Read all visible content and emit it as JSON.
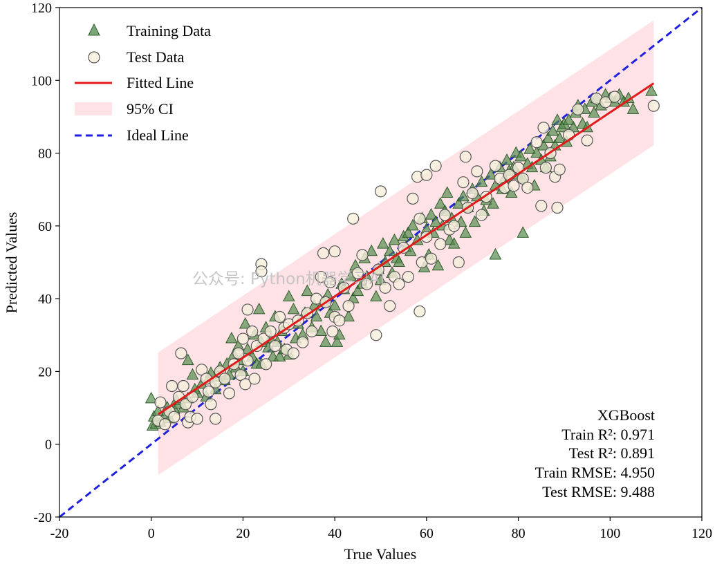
{
  "chart_data": {
    "type": "scatter",
    "xlabel": "True Values",
    "ylabel": "Predicted Values",
    "xlim": [
      -20,
      120
    ],
    "ylim": [
      -20,
      120
    ],
    "xticks": [
      "-20",
      "0",
      "20",
      "40",
      "60",
      "80",
      "100",
      "120"
    ],
    "yticks": [
      "-20",
      "0",
      "20",
      "40",
      "60",
      "80",
      "100",
      "120"
    ],
    "legend": [
      {
        "label": "Training Data",
        "kind": "triangle"
      },
      {
        "label": "Test Data",
        "kind": "circle"
      },
      {
        "label": "Fitted Line",
        "kind": "line"
      },
      {
        "label": "95% CI",
        "kind": "band"
      },
      {
        "label": "Ideal Line",
        "kind": "dashed"
      }
    ],
    "legend_position": "upper-left",
    "colors": {
      "training": "#4f8a4a",
      "training_edge": "#2f5a2b",
      "test": "#f6efdc",
      "test_edge": "#555555",
      "fitted": "#e31a1c",
      "ci": "#ffd5dc",
      "ideal": "#1f1fdf"
    },
    "fitted_line": {
      "x": [
        1.5,
        109.5
      ],
      "y": [
        8.2,
        99.2
      ]
    },
    "ci_band": {
      "x": [
        1.5,
        109.5
      ],
      "lower": [
        -8.5,
        82.2
      ],
      "upper": [
        25.2,
        116.5
      ]
    },
    "ideal_line": {
      "x": [
        -20,
        120
      ],
      "y": [
        -20,
        120
      ]
    },
    "metrics": {
      "model": "XGBoost",
      "train_r2": "Train R²: 0.971",
      "test_r2": "Test R²: 0.891",
      "train_rmse": "Train RMSE: 4.950",
      "test_rmse": "Test RMSE: 9.488"
    },
    "watermark": "公众号: Python机器学习AI",
    "series": [
      {
        "name": "Training Data",
        "points": [
          [
            0,
            12.5
          ],
          [
            0.3,
            5
          ],
          [
            0.6,
            7.5
          ],
          [
            1,
            5.5
          ],
          [
            1.5,
            9
          ],
          [
            2,
            6
          ],
          [
            3,
            8
          ],
          [
            3.5,
            10
          ],
          [
            4,
            7
          ],
          [
            5,
            9.5
          ],
          [
            5.5,
            12
          ],
          [
            6,
            11
          ],
          [
            7,
            10
          ],
          [
            8,
            12.5
          ],
          [
            8,
            23
          ],
          [
            9,
            19
          ],
          [
            9.5,
            15
          ],
          [
            10,
            14
          ],
          [
            11,
            16.5
          ],
          [
            12,
            13
          ],
          [
            12.5,
            18
          ],
          [
            13,
            19.5
          ],
          [
            14,
            15
          ],
          [
            14.5,
            18.5
          ],
          [
            15,
            21
          ],
          [
            16,
            17.5
          ],
          [
            16.5,
            22
          ],
          [
            17,
            19
          ],
          [
            17.5,
            29
          ],
          [
            18,
            24.5
          ],
          [
            18.5,
            21
          ],
          [
            19,
            27
          ],
          [
            19.5,
            23
          ],
          [
            20,
            20
          ],
          [
            20.5,
            33
          ],
          [
            21,
            26
          ],
          [
            22,
            24
          ],
          [
            22.5,
            30
          ],
          [
            23,
            22
          ],
          [
            23.5,
            37
          ],
          [
            24,
            28
          ],
          [
            24,
            22
          ],
          [
            25,
            32
          ],
          [
            25.5,
            26.5
          ],
          [
            26,
            29
          ],
          [
            26.5,
            24
          ],
          [
            27,
            35
          ],
          [
            27.5,
            28
          ],
          [
            28,
            24
          ],
          [
            28.5,
            31
          ],
          [
            29,
            26
          ],
          [
            30,
            40.5
          ],
          [
            30,
            24.5
          ],
          [
            31,
            37
          ],
          [
            31.5,
            29
          ],
          [
            32,
            33
          ],
          [
            33,
            30
          ],
          [
            33.5,
            36
          ],
          [
            34,
            42
          ],
          [
            35,
            32
          ],
          [
            35.5,
            38
          ],
          [
            36,
            35
          ],
          [
            37,
            31
          ],
          [
            37.5,
            39
          ],
          [
            38,
            28
          ],
          [
            38.5,
            41
          ],
          [
            39,
            36
          ],
          [
            40,
            38
          ],
          [
            40.5,
            28
          ],
          [
            41,
            30
          ],
          [
            41.5,
            44
          ],
          [
            42,
            42.5
          ],
          [
            43,
            35
          ],
          [
            43.5,
            46
          ],
          [
            44,
            40
          ],
          [
            44.5,
            49
          ],
          [
            45,
            42
          ],
          [
            46,
            44
          ],
          [
            46.5,
            51
          ],
          [
            47,
            46
          ],
          [
            48,
            53
          ],
          [
            49,
            40.5
          ],
          [
            49.5,
            48
          ],
          [
            50,
            45
          ],
          [
            50.5,
            55
          ],
          [
            51,
            50
          ],
          [
            52,
            53
          ],
          [
            52.5,
            47
          ],
          [
            53,
            56
          ],
          [
            53.5,
            51
          ],
          [
            54,
            50
          ],
          [
            55,
            57
          ],
          [
            55.5,
            54
          ],
          [
            56,
            58
          ],
          [
            56.5,
            53
          ],
          [
            57,
            60
          ],
          [
            58,
            56
          ],
          [
            59,
            62
          ],
          [
            59.5,
            48.5
          ],
          [
            60,
            59
          ],
          [
            60.5,
            52
          ],
          [
            61,
            63
          ],
          [
            61.5,
            58
          ],
          [
            62,
            61
          ],
          [
            62.5,
            49
          ],
          [
            63,
            66
          ],
          [
            63.5,
            60
          ],
          [
            64,
            64
          ],
          [
            64.5,
            69
          ],
          [
            65,
            56
          ],
          [
            65.5,
            62
          ],
          [
            66,
            55
          ],
          [
            67,
            66
          ],
          [
            67.5,
            61
          ],
          [
            68,
            68
          ],
          [
            68.5,
            58
          ],
          [
            69,
            65
          ],
          [
            70,
            70
          ],
          [
            70.5,
            61
          ],
          [
            71,
            68
          ],
          [
            72,
            72
          ],
          [
            72.5,
            64
          ],
          [
            73,
            67
          ],
          [
            74,
            74
          ],
          [
            74.5,
            66
          ],
          [
            75,
            71
          ],
          [
            75,
            52
          ],
          [
            76,
            76
          ],
          [
            76.5,
            70
          ],
          [
            77,
            73
          ],
          [
            77.5,
            78
          ],
          [
            78,
            75
          ],
          [
            78.5,
            69
          ],
          [
            79,
            76
          ],
          [
            79.5,
            80
          ],
          [
            80,
            74
          ],
          [
            80.5,
            79
          ],
          [
            81,
            73
          ],
          [
            81,
            58
          ],
          [
            82,
            77
          ],
          [
            82.5,
            81
          ],
          [
            83,
            76
          ],
          [
            83.5,
            71
          ],
          [
            84,
            80
          ],
          [
            85,
            78
          ],
          [
            85.5,
            82
          ],
          [
            86,
            76
          ],
          [
            86.5,
            84
          ],
          [
            87,
            79
          ],
          [
            87.5,
            86
          ],
          [
            88,
            82
          ],
          [
            88.5,
            89
          ],
          [
            89,
            84
          ],
          [
            89.5,
            87
          ],
          [
            90,
            88
          ],
          [
            90.5,
            83
          ],
          [
            91,
            89
          ],
          [
            92,
            87
          ],
          [
            92.5,
            91
          ],
          [
            93,
            93
          ],
          [
            94,
            88
          ],
          [
            94.5,
            92
          ],
          [
            95,
            87
          ],
          [
            96,
            94
          ],
          [
            96.5,
            91
          ],
          [
            97,
            95
          ],
          [
            98,
            93
          ],
          [
            99,
            96
          ],
          [
            100,
            95
          ],
          [
            101,
            94
          ],
          [
            102,
            96
          ],
          [
            103,
            94
          ],
          [
            104,
            95
          ],
          [
            105,
            92
          ],
          [
            109,
            97
          ]
        ]
      },
      {
        "name": "Test Data",
        "points": [
          [
            1.5,
            6.5
          ],
          [
            2,
            11.5
          ],
          [
            3,
            5.5
          ],
          [
            4,
            9
          ],
          [
            4.5,
            16
          ],
          [
            5,
            7.5
          ],
          [
            6,
            13
          ],
          [
            6.5,
            25
          ],
          [
            7,
            16
          ],
          [
            7.5,
            11
          ],
          [
            8,
            6
          ],
          [
            8.5,
            7.5
          ],
          [
            9,
            13
          ],
          [
            10,
            7
          ],
          [
            11,
            20.5
          ],
          [
            12,
            18
          ],
          [
            12.5,
            14.5
          ],
          [
            13,
            11
          ],
          [
            14,
            17
          ],
          [
            14,
            7
          ],
          [
            15,
            20
          ],
          [
            16,
            18
          ],
          [
            17,
            14
          ],
          [
            18,
            22
          ],
          [
            19,
            25
          ],
          [
            19.5,
            19
          ],
          [
            20,
            29
          ],
          [
            20.5,
            16.5
          ],
          [
            21,
            37
          ],
          [
            21,
            23
          ],
          [
            22,
            31
          ],
          [
            22.5,
            18
          ],
          [
            23,
            27
          ],
          [
            24,
            49.5
          ],
          [
            24,
            47.5
          ],
          [
            24.5,
            29
          ],
          [
            25,
            22
          ],
          [
            26,
            31
          ],
          [
            27,
            27
          ],
          [
            28,
            35
          ],
          [
            29,
            32
          ],
          [
            29.5,
            26
          ],
          [
            30,
            33
          ],
          [
            31,
            25
          ],
          [
            32,
            34
          ],
          [
            33,
            28
          ],
          [
            34,
            36
          ],
          [
            35,
            31
          ],
          [
            36,
            40
          ],
          [
            37,
            46
          ],
          [
            37.5,
            52.5
          ],
          [
            38,
            39
          ],
          [
            39,
            44.5
          ],
          [
            39.5,
            31
          ],
          [
            40,
            53
          ],
          [
            40,
            35
          ],
          [
            41,
            34
          ],
          [
            42,
            43
          ],
          [
            43,
            38
          ],
          [
            44,
            62
          ],
          [
            45,
            47
          ],
          [
            46,
            52
          ],
          [
            47,
            44
          ],
          [
            49,
            30
          ],
          [
            49.5,
            48
          ],
          [
            50,
            69.5
          ],
          [
            51,
            43
          ],
          [
            52,
            38
          ],
          [
            53,
            46
          ],
          [
            54,
            44
          ],
          [
            55,
            54
          ],
          [
            56,
            46
          ],
          [
            57,
            67.5
          ],
          [
            58,
            73.5
          ],
          [
            58.5,
            62
          ],
          [
            58.5,
            36.5
          ],
          [
            59,
            50
          ],
          [
            60,
            57
          ],
          [
            60,
            74
          ],
          [
            61,
            51
          ],
          [
            62,
            76.5
          ],
          [
            63,
            55
          ],
          [
            64,
            63
          ],
          [
            65,
            59
          ],
          [
            66,
            60
          ],
          [
            67,
            50
          ],
          [
            68,
            72
          ],
          [
            68.5,
            79
          ],
          [
            69,
            65
          ],
          [
            70,
            69
          ],
          [
            71,
            75
          ],
          [
            72,
            63
          ],
          [
            73,
            68
          ],
          [
            75,
            76.5
          ],
          [
            76,
            73
          ],
          [
            77,
            70.5
          ],
          [
            78,
            74
          ],
          [
            79,
            71
          ],
          [
            80,
            76
          ],
          [
            81,
            73
          ],
          [
            82,
            70.5
          ],
          [
            84,
            83
          ],
          [
            85,
            65.5
          ],
          [
            85.5,
            87
          ],
          [
            86,
            76
          ],
          [
            87,
            80
          ],
          [
            88,
            73.5
          ],
          [
            88.5,
            65
          ],
          [
            89,
            75.5
          ],
          [
            91,
            85
          ],
          [
            93,
            92
          ],
          [
            95,
            83.5
          ],
          [
            97,
            95
          ],
          [
            99,
            94
          ],
          [
            101,
            95.5
          ],
          [
            109.5,
            93
          ]
        ]
      }
    ]
  }
}
